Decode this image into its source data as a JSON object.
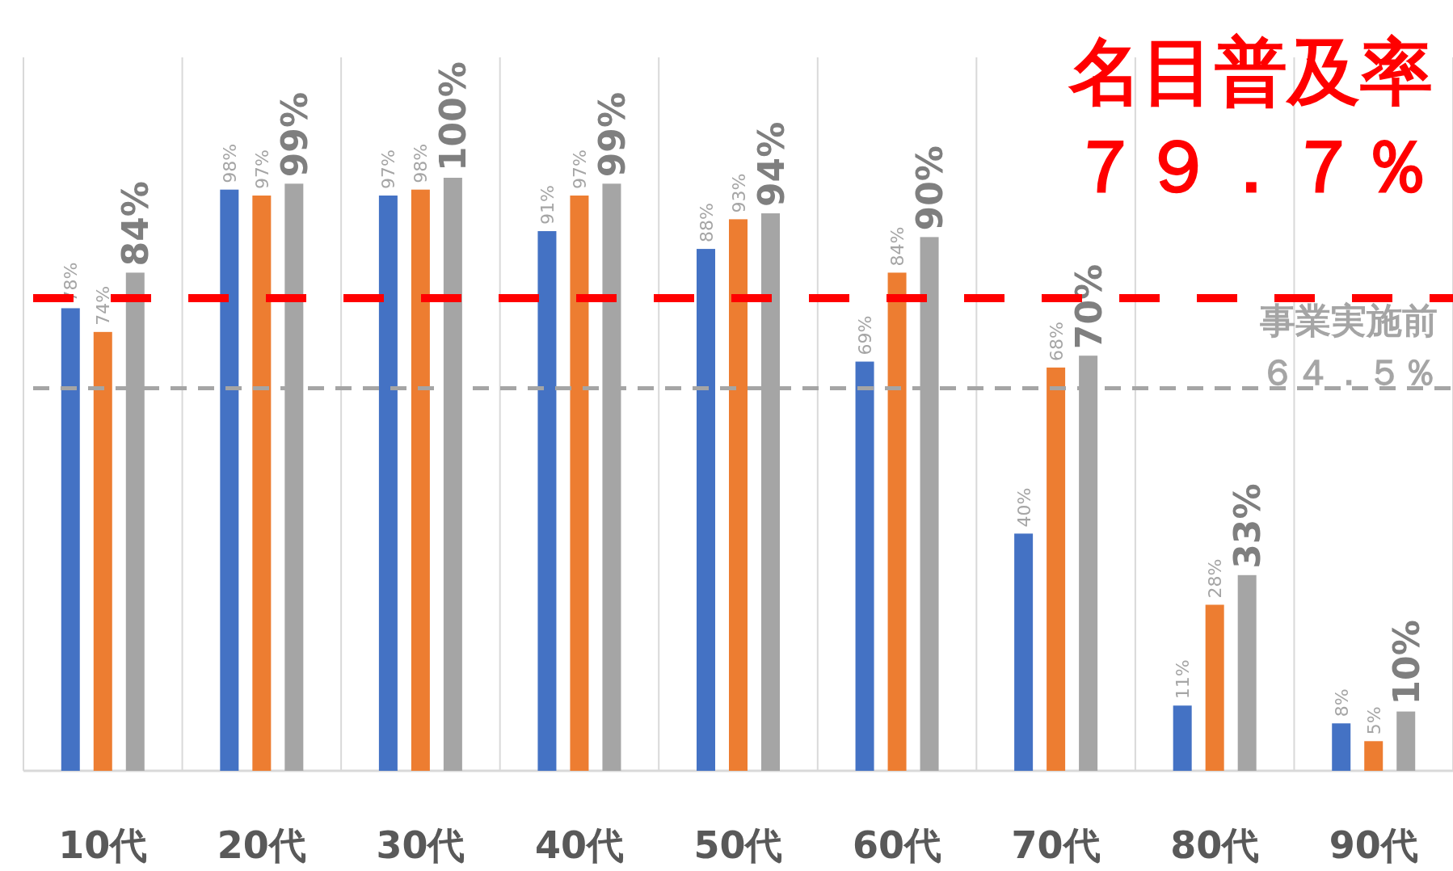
{
  "chart_data": {
    "type": "bar",
    "categories": [
      "10代",
      "20代",
      "30代",
      "40代",
      "50代",
      "60代",
      "70代",
      "80代",
      "90代"
    ],
    "series": [
      {
        "color": "#4472c4",
        "values": [
          78,
          98,
          97,
          91,
          88,
          69,
          40,
          11,
          8
        ],
        "value_labels": [
          "78%",
          "98%",
          "97%",
          "91%",
          "88%",
          "69%",
          "40%",
          "11%",
          "8%"
        ]
      },
      {
        "color": "#ed7d31",
        "values": [
          74,
          97,
          98,
          97,
          93,
          84,
          68,
          28,
          5
        ],
        "value_labels": [
          "74%",
          "97%",
          "98%",
          "97%",
          "93%",
          "84%",
          "68%",
          "28%",
          "5%"
        ]
      },
      {
        "color": "#a5a5a5",
        "values": [
          84,
          99,
          100,
          99,
          94,
          90,
          70,
          33,
          10
        ],
        "value_labels": [
          "84%",
          "99%",
          "100%",
          "99%",
          "94%",
          "90%",
          "70%",
          "33%",
          "10%"
        ]
      }
    ],
    "grid": "x",
    "ref_lines": [
      {
        "axis": "y",
        "value": 79.7,
        "label": "名目普及率７９．７％",
        "color": "#ff0000",
        "line_style": "dashed"
      },
      {
        "axis": "y",
        "value": 64.5,
        "label": "事業実施前６４．５％",
        "color": "#a5a5a5",
        "line_style": "dashed"
      }
    ]
  }
}
